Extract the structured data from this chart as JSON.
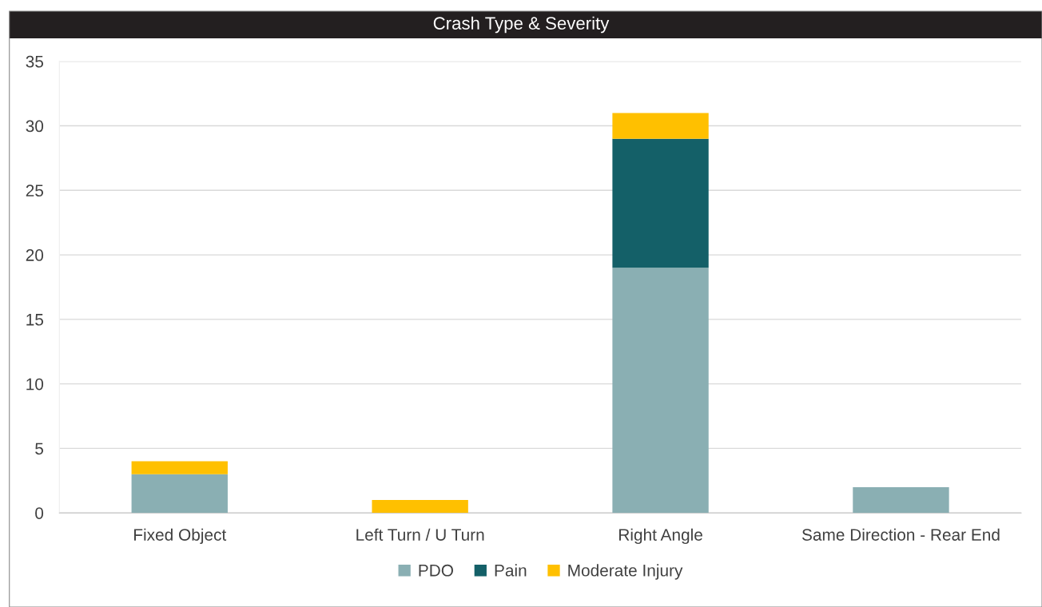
{
  "chart_data": {
    "type": "bar",
    "title": "Crash Type & Severity",
    "categories": [
      "Fixed Object",
      "Left Turn / U Turn",
      "Right Angle",
      "Same Direction - Rear End"
    ],
    "series": [
      {
        "name": "PDO",
        "color": "#8aafb3",
        "values": [
          3,
          null,
          19,
          2
        ]
      },
      {
        "name": "Pain",
        "color": "#146068",
        "values": [
          null,
          null,
          10,
          null
        ]
      },
      {
        "name": "Moderate Injury",
        "color": "#ffc000",
        "values": [
          1,
          1,
          2,
          null
        ]
      }
    ],
    "stacked": true,
    "ylim": [
      0,
      35
    ],
    "yticks": [
      0,
      5,
      10,
      15,
      20,
      25,
      30,
      35
    ],
    "grid": "y",
    "legend": "bottom"
  }
}
